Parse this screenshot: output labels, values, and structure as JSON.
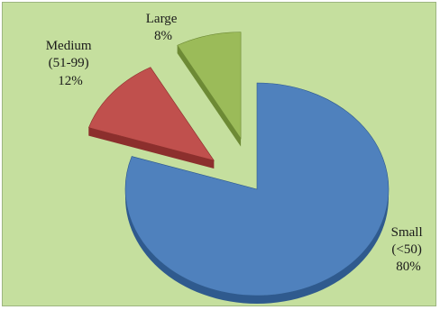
{
  "chart_data": {
    "type": "pie",
    "style": "exploded-3d",
    "background_color": "#c5df9e",
    "slices": [
      {
        "label_lines": [
          "Small",
          "(<50)",
          "80%"
        ],
        "value": 80,
        "color": "#4f81bd",
        "side_color": "#2f5a8e"
      },
      {
        "label_lines": [
          "Medium",
          "(51-99)",
          "12%"
        ],
        "value": 12,
        "color": "#c0504d",
        "side_color": "#8c2f2d"
      },
      {
        "label_lines": [
          "Large",
          "8%"
        ],
        "value": 8,
        "color": "#9bbb59",
        "side_color": "#6d8a35"
      }
    ]
  }
}
